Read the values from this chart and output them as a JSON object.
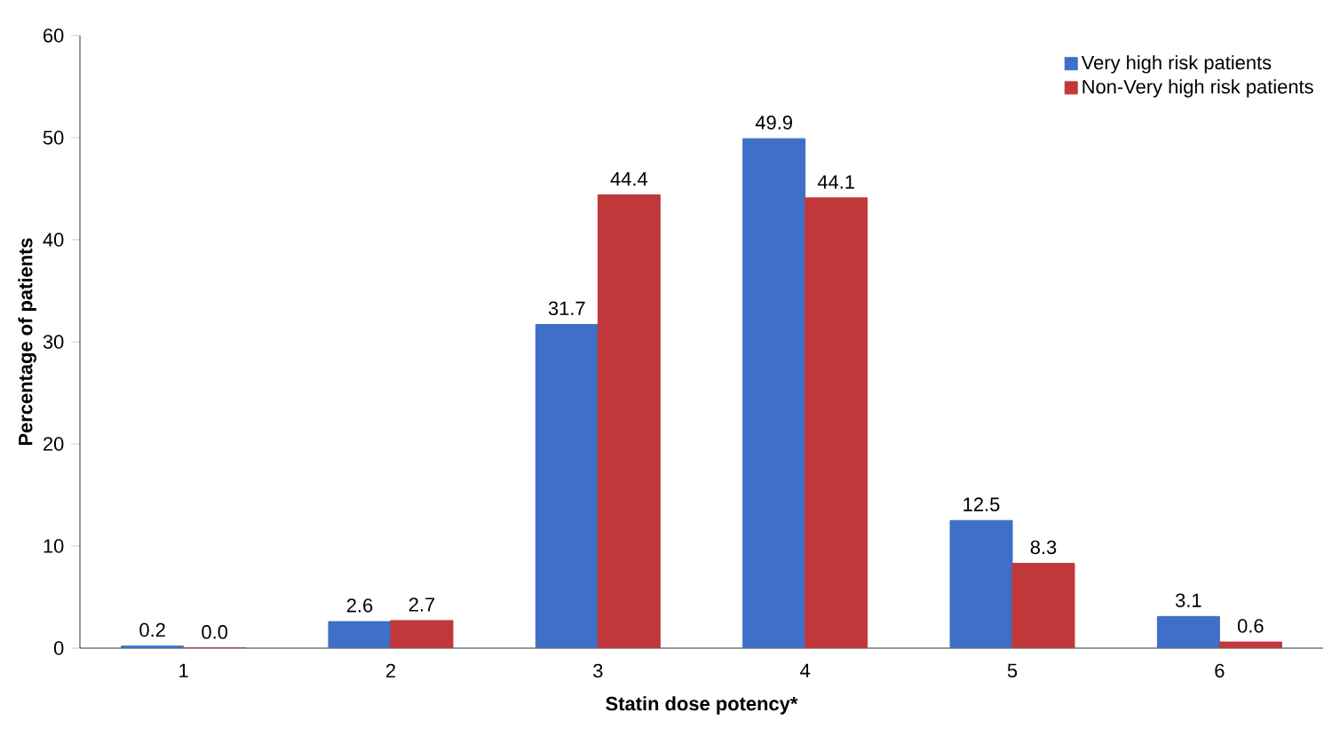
{
  "chart_data": {
    "type": "bar",
    "xlabel": "Statin dose potency*",
    "ylabel": "Percentage of patients",
    "categories": [
      "1",
      "2",
      "3",
      "4",
      "5",
      "6"
    ],
    "series": [
      {
        "name": "Very high risk patients",
        "color": "#3f6fc6",
        "values": [
          0.2,
          2.6,
          31.7,
          49.9,
          12.5,
          3.1
        ],
        "value_labels": [
          "0.2",
          "2.6",
          "31.7",
          "49.9",
          "12.5",
          "3.1"
        ]
      },
      {
        "name": "Non-Very high risk patients",
        "color": "#c0383a",
        "values": [
          0.0,
          2.7,
          44.4,
          44.1,
          8.3,
          0.6
        ],
        "value_labels": [
          "0.0",
          "2.7",
          "44.4",
          "44.1",
          "8.3",
          "0.6"
        ]
      }
    ],
    "ylim": [
      0,
      60
    ],
    "yticks": [
      0,
      10,
      20,
      30,
      40,
      50,
      60
    ],
    "legend": "top right",
    "grid": false
  }
}
